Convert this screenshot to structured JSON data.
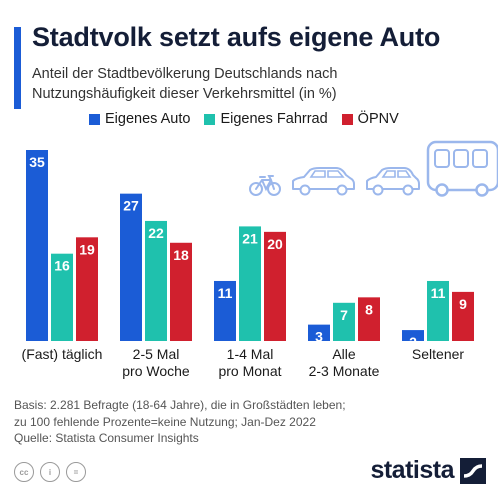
{
  "header": {
    "title": "Stadtvolk setzt aufs eigene Auto",
    "subtitle": "Anteil der Stadtbevölkerung Deutschlands nach Nutzungshäufigkeit dieser Verkehrsmittel (in %)"
  },
  "colors": {
    "accent": "#1b5cd6",
    "car": "#1b5cd6",
    "bike": "#1fc1ad",
    "transit": "#d0202e",
    "icons": "#9bb7ec"
  },
  "chart_data": {
    "type": "bar",
    "categories": [
      [
        "(Fast) täglich"
      ],
      [
        "2-5 Mal",
        "pro Woche"
      ],
      [
        "1-4 Mal",
        "pro Monat"
      ],
      [
        "Alle",
        "2-3 Monate"
      ],
      [
        "Seltener"
      ]
    ],
    "series": [
      {
        "name": "Eigenes Auto",
        "values": [
          35,
          27,
          11,
          3,
          2
        ]
      },
      {
        "name": "Eigenes Fahrrad",
        "values": [
          16,
          22,
          21,
          7,
          11
        ]
      },
      {
        "name": "ÖPNV",
        "values": [
          19,
          18,
          20,
          8,
          9
        ]
      }
    ],
    "ylim": [
      0,
      35
    ],
    "grid": false,
    "legend": "top",
    "data_labels": true
  },
  "decor_icons": [
    "bicycle-icon",
    "car-icon",
    "car-icon",
    "bus-icon"
  ],
  "footer": {
    "line1": "Basis: 2.281 Befragte (18-64 Jahre), die in Großstädten leben;",
    "line2": "zu 100 fehlende Prozente=keine Nutzung; Jan-Dez 2022",
    "line3": "Quelle: Statista Consumer Insights"
  },
  "license_icons": [
    "cc",
    "i",
    "="
  ],
  "brand": {
    "name": "statista"
  }
}
